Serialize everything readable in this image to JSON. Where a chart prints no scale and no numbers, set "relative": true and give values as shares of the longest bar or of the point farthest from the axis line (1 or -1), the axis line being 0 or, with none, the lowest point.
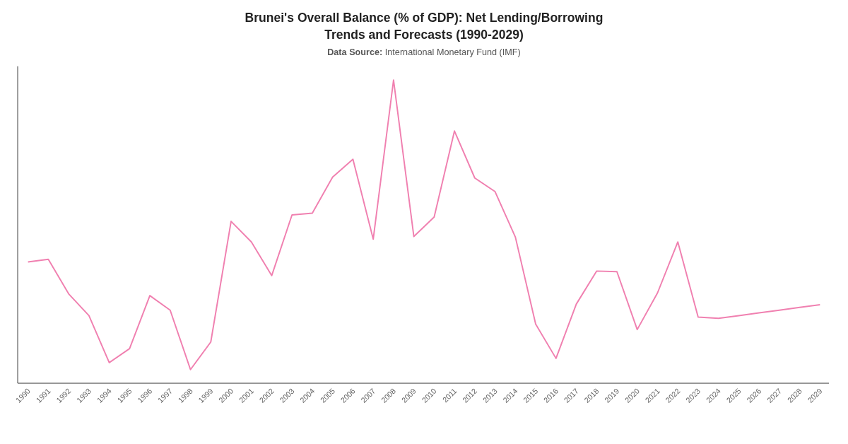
{
  "chart_data": {
    "type": "line",
    "title": "Brunei's Overall Balance (% of GDP): Net Lending/Borrowing Trends and Forecasts (1990-2029)",
    "subtitle": "Data Source: International Monetary Fund (IMF)",
    "relative": true,
    "categories": [
      "1990",
      "1991",
      "1992",
      "1993",
      "1994",
      "1995",
      "1996",
      "1997",
      "1998",
      "1999",
      "2000",
      "2001",
      "2002",
      "2003",
      "2004",
      "2005",
      "2006",
      "2007",
      "2008",
      "2009",
      "2010",
      "2011",
      "2012",
      "2013",
      "2014",
      "2015",
      "2016",
      "2017",
      "2018",
      "2019",
      "2020",
      "2021",
      "2022",
      "2023",
      "2024",
      "2025",
      "2026",
      "2027",
      "2028",
      "2029"
    ],
    "series": [
      {
        "color": "#f080b0",
        "values": [
          0.4,
          0.409,
          0.295,
          0.223,
          0.068,
          0.114,
          0.289,
          0.241,
          0.045,
          0.136,
          0.534,
          0.466,
          0.355,
          0.555,
          0.561,
          0.68,
          0.739,
          0.475,
          1,
          0.484,
          0.548,
          0.832,
          0.677,
          0.632,
          0.482,
          0.195,
          0.082,
          0.261,
          0.37,
          0.368,
          0.177,
          0.298,
          0.466,
          0.218,
          0.214,
          0.223,
          0.232,
          0.241,
          0.25,
          0.259
        ]
      }
    ],
    "marker": "none",
    "line_style": "solid"
  }
}
